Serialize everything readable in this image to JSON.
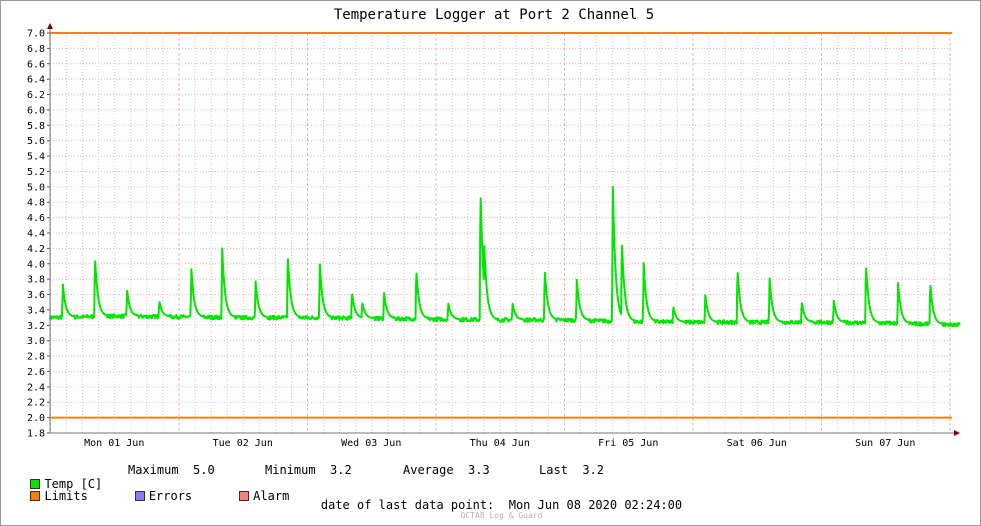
{
  "chart_data": {
    "type": "line",
    "title": "Temperature Logger at Port 2 Channel 5",
    "ylim": [
      1.8,
      7.0
    ],
    "y_ticks": [
      "1.8",
      "2.0",
      "2.2",
      "2.4",
      "2.6",
      "2.8",
      "3.0",
      "3.2",
      "3.4",
      "3.6",
      "3.8",
      "4.0",
      "4.2",
      "4.4",
      "4.6",
      "4.8",
      "5.0",
      "5.2",
      "5.4",
      "5.6",
      "5.8",
      "6.0",
      "6.2",
      "6.4",
      "6.6",
      "6.8",
      "7.0"
    ],
    "x_ticks": [
      "Mon 01 Jun",
      "Tue 02 Jun",
      "Wed 03 Jun",
      "Thu 04 Jun",
      "Fri 05 Jun",
      "Sat 06 Jun",
      "Sun 07 Jun"
    ],
    "grid": true,
    "colors": {
      "temp": "#00e600",
      "limits": "#ff7f00",
      "errors": "#8080ff",
      "alarm": "#ff8080",
      "grid": "#e8b4b4",
      "axis": "#800000"
    },
    "limits": [
      2.0,
      7.0
    ],
    "baseline": [
      [
        0.0,
        3.3
      ],
      [
        0.5,
        3.32
      ],
      [
        1.0,
        3.31
      ],
      [
        1.5,
        3.3
      ],
      [
        2.0,
        3.3
      ],
      [
        2.5,
        3.29
      ],
      [
        3.0,
        3.28
      ],
      [
        3.5,
        3.27
      ],
      [
        4.0,
        3.27
      ],
      [
        4.5,
        3.25
      ],
      [
        5.0,
        3.24
      ],
      [
        5.5,
        3.24
      ],
      [
        6.0,
        3.24
      ],
      [
        6.5,
        3.23
      ],
      [
        7.0,
        3.21
      ]
    ],
    "spikes": [
      [
        0.1,
        3.73
      ],
      [
        0.35,
        4.1
      ],
      [
        0.6,
        3.65
      ],
      [
        0.85,
        3.52
      ],
      [
        1.1,
        3.93
      ],
      [
        1.34,
        4.2
      ],
      [
        1.6,
        3.77
      ],
      [
        1.85,
        4.13
      ],
      [
        2.1,
        3.99
      ],
      [
        2.35,
        3.63
      ],
      [
        2.43,
        3.5
      ],
      [
        2.6,
        3.62
      ],
      [
        2.85,
        3.93
      ],
      [
        3.1,
        3.48
      ],
      [
        3.35,
        5.0
      ],
      [
        3.36,
        4.1
      ],
      [
        3.38,
        4.23
      ],
      [
        3.6,
        3.48
      ],
      [
        3.85,
        3.94
      ],
      [
        4.1,
        3.79
      ],
      [
        4.38,
        5.0
      ],
      [
        4.45,
        4.33
      ],
      [
        4.62,
        4.01
      ],
      [
        4.85,
        3.45
      ],
      [
        5.1,
        3.59
      ],
      [
        5.35,
        3.94
      ],
      [
        5.6,
        3.81
      ],
      [
        5.85,
        3.51
      ],
      [
        6.1,
        3.52
      ],
      [
        6.35,
        4.01
      ],
      [
        6.6,
        3.75
      ],
      [
        6.85,
        3.76
      ]
    ],
    "series": [
      {
        "name": "Temp [C]",
        "stats": {
          "maximum": "5.0",
          "minimum": "3.2",
          "average": "3.3",
          "last": "3.2"
        }
      }
    ]
  },
  "legend": {
    "temp": "Temp [C]",
    "limits": "Limits",
    "errors": "Errors",
    "alarm": "Alarm",
    "maximum_label": "Maximum",
    "minimum_label": "Minimum",
    "average_label": "Average",
    "last_label": "Last"
  },
  "footer": {
    "last_point_label": "date of last data point:",
    "last_point_value": "Mon Jun 08 2020 02:24:00",
    "watermark": "OCTA8 Log & Guard"
  }
}
